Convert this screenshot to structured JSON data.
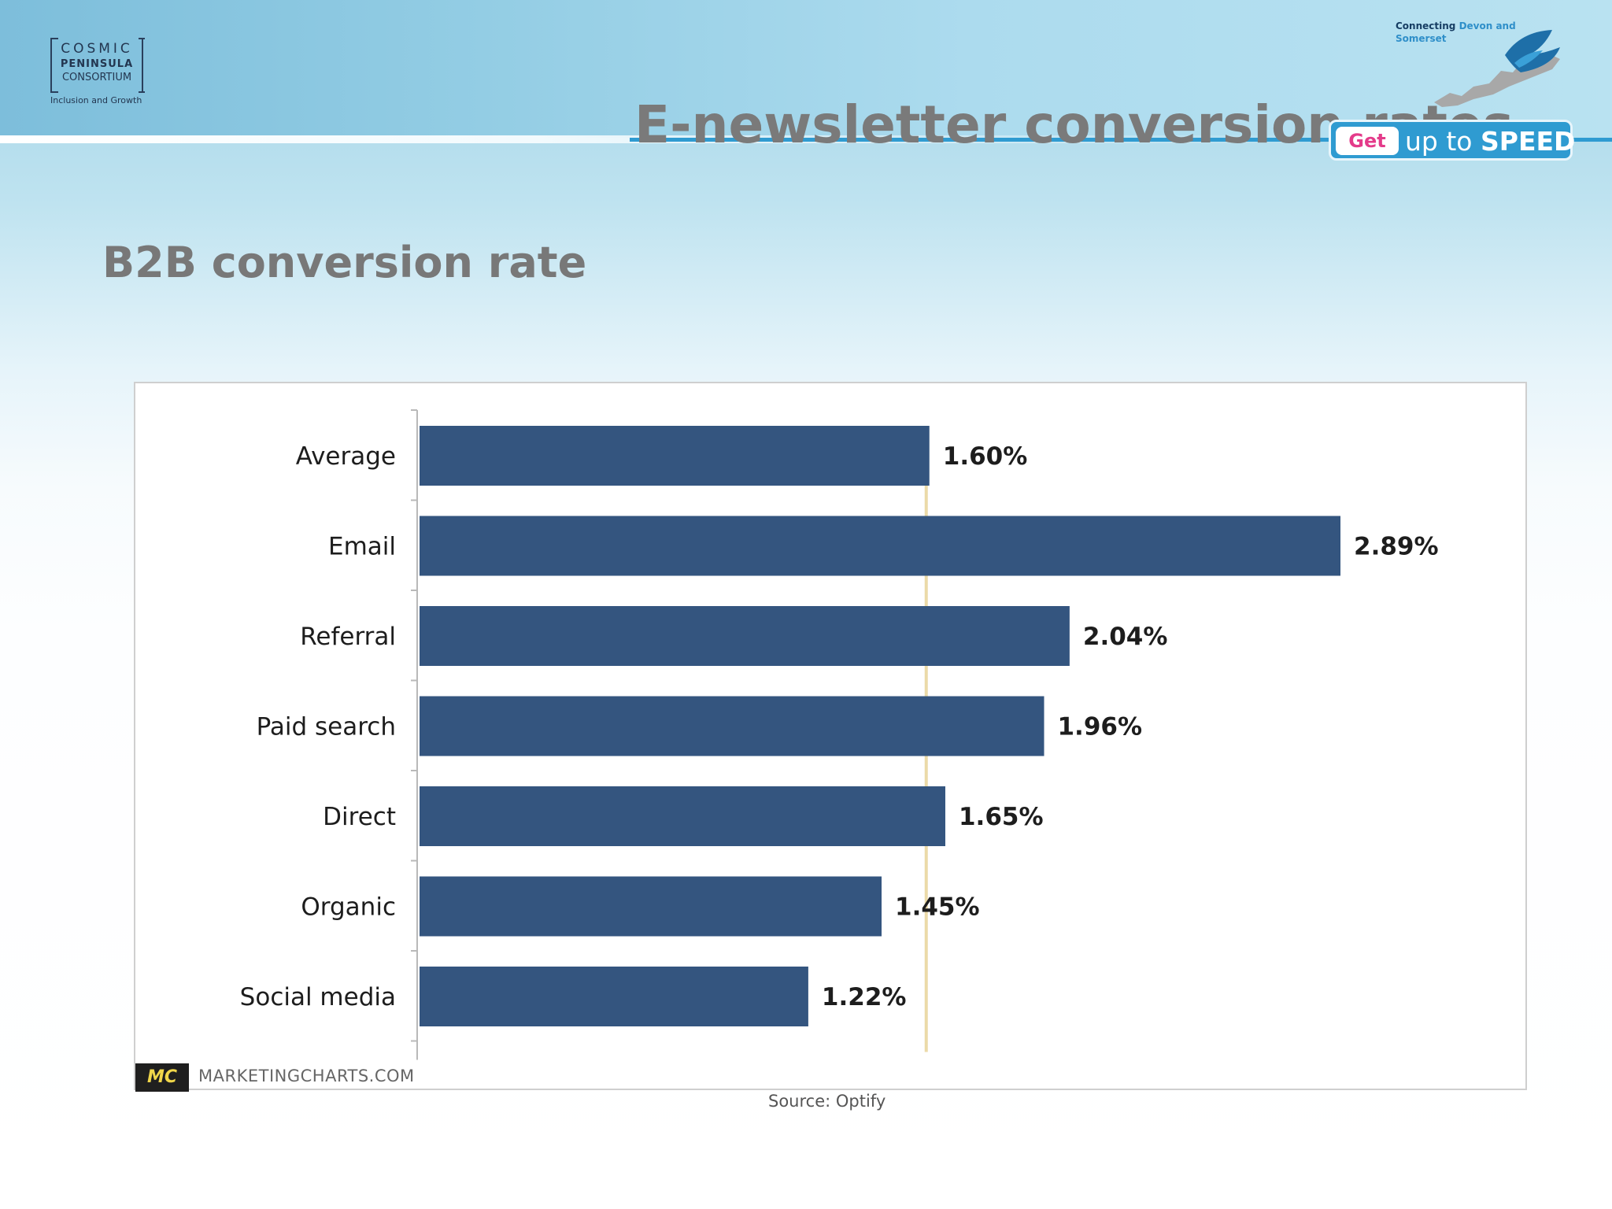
{
  "header": {
    "logo": {
      "line1": "COSMIC",
      "line2": "PENINSULA",
      "line3": "CONSORTIUM",
      "tagline": "Inclusion and Growth"
    },
    "title": "E-newsletter conversion rates",
    "brand": {
      "connecting": "Connecting",
      "regions": "Devon and Somerset",
      "get": "Get",
      "up_to": "up to",
      "speed": "SPEED"
    }
  },
  "subtitle": "B2B conversion rate",
  "chart_footer": {
    "mc_badge": "MC",
    "site": "MARKETINGCHARTS.COM",
    "source": "Source: Optify"
  },
  "colors": {
    "bar": "#34557f",
    "reference_line": "#e8d49a",
    "title_gray": "#7a7a7a",
    "accent_blue": "#2f9bd1"
  },
  "chart_data": {
    "type": "bar",
    "orientation": "horizontal",
    "categories": [
      "Average",
      "Email",
      "Referral",
      "Paid search",
      "Direct",
      "Organic",
      "Social media"
    ],
    "values": [
      1.6,
      2.89,
      2.04,
      1.96,
      1.65,
      1.45,
      1.22
    ],
    "data_labels": [
      "1.60%",
      "2.89%",
      "2.04%",
      "1.96%",
      "1.65%",
      "1.45%",
      "1.22%"
    ],
    "reference_line": {
      "value": 1.6
    },
    "xlim": [
      0,
      2.89
    ],
    "grid": false,
    "legend": "none"
  }
}
